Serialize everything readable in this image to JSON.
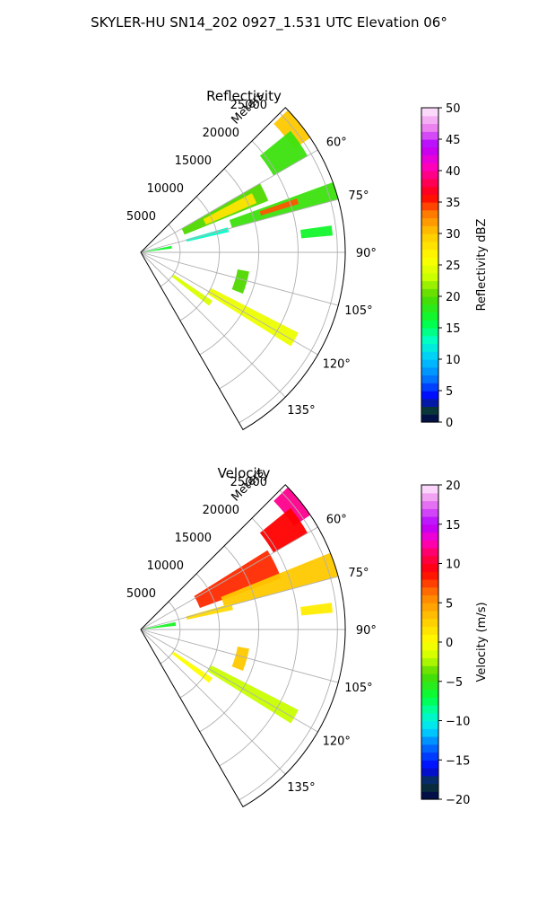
{
  "figure_title": "SKYLER-HU  SN14_202  0927_1.531 UTC Elevation 06°",
  "chart_data": [
    {
      "type": "heatmap",
      "projection": "polar-sector",
      "title": "Reflectivity",
      "radial_axis_label": "Meters",
      "radial_ticks": [
        "5000",
        "10000",
        "15000",
        "20000",
        "25000"
      ],
      "radial_tick_values": [
        5000,
        10000,
        15000,
        20000,
        25000
      ],
      "rmax": 26000,
      "azimuth_range": [
        45,
        150
      ],
      "angle_ticks": [
        "60°",
        "75°",
        "90°",
        "105°",
        "120°",
        "135°"
      ],
      "angle_tick_values": [
        60,
        75,
        90,
        105,
        120,
        135
      ],
      "grid": true,
      "colorbar": {
        "label": "Reflectivity dBZ",
        "min": 0,
        "max": 50,
        "ticks": [
          "0",
          "5",
          "10",
          "15",
          "20",
          "25",
          "30",
          "35",
          "40",
          "45",
          "50"
        ],
        "tick_values": [
          0,
          5,
          10,
          15,
          20,
          25,
          30,
          35,
          40,
          45,
          50
        ],
        "stops": [
          [
            0,
            "#00004c"
          ],
          [
            2,
            "#0a3a38"
          ],
          [
            4,
            "#0000ff"
          ],
          [
            7,
            "#0078ff"
          ],
          [
            10,
            "#00c8ff"
          ],
          [
            13,
            "#00ffc8"
          ],
          [
            16,
            "#00ff3c"
          ],
          [
            20,
            "#50d800"
          ],
          [
            23,
            "#c8ff00"
          ],
          [
            26,
            "#ffff00"
          ],
          [
            30,
            "#ffc800"
          ],
          [
            33,
            "#ff8000"
          ],
          [
            36,
            "#ff0000"
          ],
          [
            38,
            "#ff0050"
          ],
          [
            41,
            "#ff00c8"
          ],
          [
            44,
            "#b400ff"
          ],
          [
            47,
            "#ee88ee"
          ],
          [
            50,
            "#ffeeff"
          ]
        ]
      },
      "echo_regions": [
        {
          "az": [
            46,
            56
          ],
          "r": [
            23500,
            26000
          ],
          "value": 30
        },
        {
          "az": [
            51,
            60
          ],
          "r": [
            19500,
            24500
          ],
          "value": 19
        },
        {
          "az": [
            60,
            68
          ],
          "r": [
            6000,
            17500
          ],
          "value": 20
        },
        {
          "az": [
            62,
            67
          ],
          "r": [
            9000,
            16000
          ],
          "value": 28
        },
        {
          "az": [
            70,
            75
          ],
          "r": [
            12000,
            26000
          ],
          "value": 19
        },
        {
          "az": [
            71,
            73
          ],
          "r": [
            16000,
            21000
          ],
          "value": 34
        },
        {
          "az": [
            74,
            77
          ],
          "r": [
            6000,
            11500
          ],
          "value": 13
        },
        {
          "az": [
            78,
            83
          ],
          "r": [
            500,
            4000
          ],
          "value": 17
        },
        {
          "az": [
            82,
            85
          ],
          "r": [
            20500,
            24500
          ],
          "value": 17
        },
        {
          "az": [
            100,
            112
          ],
          "r": [
            12500,
            14000
          ],
          "value": 20
        },
        {
          "az": [
            117,
            122
          ],
          "r": [
            10000,
            22500
          ],
          "value": 25
        },
        {
          "az": [
            124,
            128
          ],
          "r": [
            5000,
            11000
          ],
          "value": 24
        }
      ]
    },
    {
      "type": "heatmap",
      "projection": "polar-sector",
      "title": "Velocity",
      "radial_axis_label": "Meters",
      "radial_ticks": [
        "5000",
        "10000",
        "15000",
        "20000",
        "25000"
      ],
      "radial_tick_values": [
        5000,
        10000,
        15000,
        20000,
        25000
      ],
      "rmax": 26000,
      "azimuth_range": [
        45,
        150
      ],
      "angle_ticks": [
        "60°",
        "75°",
        "90°",
        "105°",
        "120°",
        "135°"
      ],
      "angle_tick_values": [
        60,
        75,
        90,
        105,
        120,
        135
      ],
      "grid": true,
      "colorbar": {
        "label": "Velocity (m/s)",
        "min": -20,
        "max": 20,
        "ticks": [
          "−20",
          "−15",
          "−10",
          "−5",
          "0",
          "5",
          "10",
          "15",
          "20"
        ],
        "tick_values": [
          -20,
          -15,
          -10,
          -5,
          0,
          5,
          10,
          15,
          20
        ],
        "stops": [
          [
            -20,
            "#00004c"
          ],
          [
            -18,
            "#0a3a38"
          ],
          [
            -16,
            "#0000ff"
          ],
          [
            -13,
            "#0078ff"
          ],
          [
            -11,
            "#00e0ff"
          ],
          [
            -9,
            "#00ffb4"
          ],
          [
            -7,
            "#00ff3c"
          ],
          [
            -4,
            "#50d800"
          ],
          [
            -2,
            "#c8ff00"
          ],
          [
            0,
            "#ffff00"
          ],
          [
            3,
            "#ffc800"
          ],
          [
            6,
            "#ff8000"
          ],
          [
            9,
            "#ff0000"
          ],
          [
            11,
            "#ff0050"
          ],
          [
            13,
            "#ff00c8"
          ],
          [
            15,
            "#b400ff"
          ],
          [
            18,
            "#ee88ee"
          ],
          [
            20,
            "#ffeeff"
          ]
        ]
      },
      "echo_regions": [
        {
          "az": [
            46,
            56
          ],
          "r": [
            23500,
            26000
          ],
          "value": 12
        },
        {
          "az": [
            51,
            60
          ],
          "r": [
            19500,
            24500
          ],
          "value": 9
        },
        {
          "az": [
            58,
            70
          ],
          "r": [
            8000,
            19000
          ],
          "value": 8
        },
        {
          "az": [
            68,
            75
          ],
          "r": [
            11000,
            26000
          ],
          "value": 3
        },
        {
          "az": [
            74,
            78
          ],
          "r": [
            6000,
            12000
          ],
          "value": 2
        },
        {
          "az": [
            78,
            84
          ],
          "r": [
            500,
            4500
          ],
          "value": -6
        },
        {
          "az": [
            82,
            85
          ],
          "r": [
            20500,
            24500
          ],
          "value": 1
        },
        {
          "az": [
            100,
            112
          ],
          "r": [
            12500,
            14000
          ],
          "value": 3
        },
        {
          "az": [
            117,
            122
          ],
          "r": [
            10000,
            22500
          ],
          "value": -2
        },
        {
          "az": [
            124,
            128
          ],
          "r": [
            5000,
            11000
          ],
          "value": 0
        }
      ]
    }
  ]
}
